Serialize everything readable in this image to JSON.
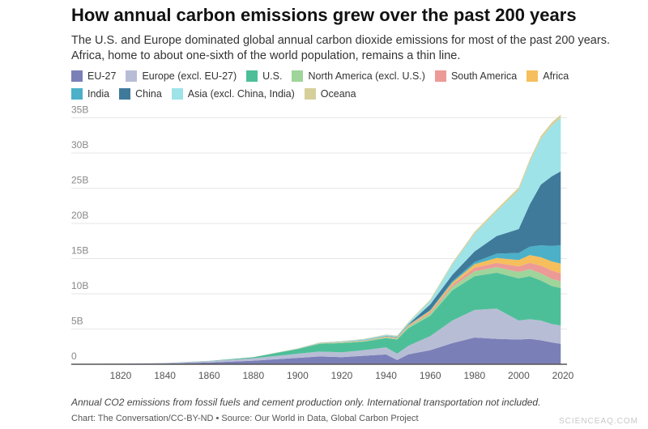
{
  "title": "How annual carbon emissions grew over the past 200 years",
  "subtitle": "The U.S. and Europe dominated global annual carbon dioxide emissions for most of the past 200 years. Africa, home to about one-sixth of the world population, remains a thin line.",
  "note": "Annual CO2 emissions from fossil fuels and cement production only. International transportation not included.",
  "source": "Chart: The Conversation/CC-BY-ND • Source: Our World in Data, Global Carbon Project",
  "watermark": "SCIENCEAQ.COM",
  "chart_data": {
    "type": "area",
    "stacked": true,
    "title": "How annual carbon emissions grew over the past 200 years",
    "xlabel": "",
    "ylabel": "",
    "xlim": [
      1800,
      2020
    ],
    "ylim": [
      0,
      35000000000
    ],
    "x_ticks": [
      "1820",
      "1840",
      "1860",
      "1880",
      "1900",
      "1920",
      "1940",
      "1960",
      "1980",
      "2000",
      "2020"
    ],
    "y_ticks": [
      "0",
      "5B",
      "10B",
      "15B",
      "20B",
      "25B",
      "30B",
      "35B"
    ],
    "grid": true,
    "legend_position": "top",
    "unit_note": "values in billions of tonnes",
    "x": [
      1800,
      1820,
      1840,
      1860,
      1880,
      1900,
      1910,
      1920,
      1930,
      1940,
      1945,
      1950,
      1960,
      1970,
      1980,
      1990,
      2000,
      2005,
      2010,
      2015,
      2019
    ],
    "series": [
      {
        "name": "EU-27",
        "color": "#7b7fb8",
        "values": [
          0.02,
          0.04,
          0.08,
          0.25,
          0.5,
          0.9,
          1.1,
          1.0,
          1.2,
          1.4,
          0.6,
          1.4,
          2.0,
          3.0,
          3.8,
          3.6,
          3.5,
          3.6,
          3.4,
          3.1,
          2.9
        ]
      },
      {
        "name": "Europe (excl. EU-27)",
        "color": "#b8bdd6",
        "values": [
          0.03,
          0.05,
          0.1,
          0.2,
          0.35,
          0.6,
          0.7,
          0.7,
          0.8,
          1.0,
          0.9,
          1.2,
          2.0,
          3.2,
          3.9,
          4.3,
          2.7,
          2.8,
          2.8,
          2.6,
          2.6
        ]
      },
      {
        "name": "U.S.",
        "color": "#4dbf98",
        "values": [
          0,
          0,
          0.01,
          0.03,
          0.15,
          0.66,
          1.1,
          1.3,
          1.2,
          1.3,
          2.0,
          2.5,
          2.9,
          4.3,
          4.8,
          5.1,
          6.0,
          6.1,
          5.7,
          5.4,
          5.3
        ]
      },
      {
        "name": "North America (excl. U.S.)",
        "color": "#9fd49a",
        "values": [
          0,
          0,
          0,
          0,
          0.01,
          0.03,
          0.06,
          0.08,
          0.1,
          0.12,
          0.15,
          0.2,
          0.3,
          0.5,
          0.7,
          0.8,
          0.9,
          1.0,
          1.0,
          1.0,
          1.0
        ]
      },
      {
        "name": "South America",
        "color": "#ec9a96",
        "values": [
          0,
          0,
          0,
          0,
          0,
          0.01,
          0.02,
          0.03,
          0.04,
          0.05,
          0.06,
          0.1,
          0.2,
          0.3,
          0.5,
          0.6,
          0.8,
          0.9,
          1.1,
          1.2,
          1.1
        ]
      },
      {
        "name": "Africa",
        "color": "#f6be5c",
        "values": [
          0,
          0,
          0,
          0,
          0,
          0.01,
          0.02,
          0.03,
          0.04,
          0.06,
          0.08,
          0.1,
          0.2,
          0.3,
          0.5,
          0.7,
          0.9,
          1.1,
          1.2,
          1.3,
          1.4
        ]
      },
      {
        "name": "India",
        "color": "#4bb0c8",
        "values": [
          0,
          0,
          0,
          0,
          0,
          0.01,
          0.02,
          0.03,
          0.04,
          0.05,
          0.06,
          0.07,
          0.1,
          0.2,
          0.3,
          0.6,
          1.0,
          1.2,
          1.7,
          2.2,
          2.6
        ]
      },
      {
        "name": "China",
        "color": "#3f7a9b",
        "values": [
          0,
          0,
          0,
          0,
          0,
          0,
          0.01,
          0.02,
          0.03,
          0.04,
          0.05,
          0.08,
          0.8,
          0.9,
          1.5,
          2.5,
          3.4,
          6.0,
          8.6,
          9.9,
          10.5
        ]
      },
      {
        "name": "Asia (excl. China, India)",
        "color": "#9de3e8",
        "values": [
          0,
          0,
          0,
          0,
          0,
          0.02,
          0.04,
          0.06,
          0.1,
          0.15,
          0.1,
          0.2,
          0.5,
          1.5,
          2.5,
          3.5,
          5.5,
          6.0,
          6.5,
          7.2,
          7.6
        ]
      },
      {
        "name": "Oceana",
        "color": "#d6cf9a",
        "values": [
          0,
          0,
          0,
          0,
          0.01,
          0.02,
          0.03,
          0.04,
          0.05,
          0.06,
          0.07,
          0.1,
          0.2,
          0.2,
          0.3,
          0.3,
          0.4,
          0.4,
          0.4,
          0.45,
          0.45
        ]
      }
    ]
  }
}
